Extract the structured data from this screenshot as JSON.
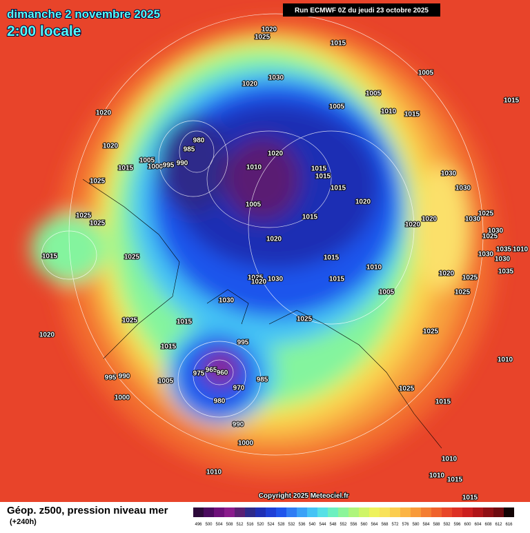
{
  "header": {
    "title": "dimanche 2 novembre 2025",
    "subtitle": "2:00 locale",
    "run": "Run ECMWF 0Z du jeudi 23 octobre 2025"
  },
  "copyright": "Copyright 2025 Meteociel.fr",
  "legend": {
    "title": "Géop. z500, pression niveau mer",
    "lead": "(+240h)",
    "values": [
      496,
      500,
      504,
      508,
      512,
      516,
      520,
      524,
      528,
      532,
      536,
      540,
      544,
      548,
      552,
      556,
      560,
      564,
      568,
      572,
      576,
      580,
      584,
      588,
      592,
      596,
      600,
      604,
      608,
      612,
      616
    ],
    "colors": [
      "#2d0a3a",
      "#4b0a5e",
      "#6e0f7a",
      "#8a1a8c",
      "#5a1f73",
      "#2e2a8a",
      "#1f2fb4",
      "#1e3fd6",
      "#1f55ec",
      "#2f7cf4",
      "#3aa1f7",
      "#45c3f5",
      "#56e0e6",
      "#6cf0c0",
      "#8cf59a",
      "#aef57c",
      "#cff568",
      "#eef25c",
      "#f8e25a",
      "#fbcd4f",
      "#fbb444",
      "#f89a3a",
      "#f47d32",
      "#ef622c",
      "#e84628",
      "#dd3024",
      "#cc1f1e",
      "#b01518",
      "#8f0f14",
      "#6e0b10",
      "#120404"
    ]
  },
  "isobars": [
    "1020",
    "1025",
    "1015",
    "1030",
    "1020",
    "1005",
    "1005",
    "1005",
    "1010",
    "1015",
    "1015",
    "1020",
    "980",
    "985",
    "1020",
    "1005",
    "1000",
    "995",
    "990",
    "1015",
    "1020",
    "1010",
    "1015",
    "1015",
    "1030",
    "1025",
    "1015",
    "1030",
    "1005",
    "1020",
    "1025",
    "1025",
    "1015",
    "1020",
    "1020",
    "1025",
    "1030",
    "1030",
    "1025",
    "1020",
    "1035",
    "1010",
    "1015",
    "1025",
    "1015",
    "1030",
    "1030",
    "1010",
    "1020",
    "1035",
    "1025",
    "1020",
    "1030",
    "1015",
    "1025",
    "1005",
    "1025",
    "1030",
    "1025",
    "1025",
    "1015",
    "1020",
    "1025",
    "995",
    "1015",
    "1010",
    "965",
    "960",
    "975",
    "990",
    "995",
    "985",
    "1005",
    "970",
    "1025",
    "980",
    "1000",
    "1015",
    "990",
    "1000",
    "1010",
    "1010",
    "1010",
    "1015",
    "1015"
  ]
}
